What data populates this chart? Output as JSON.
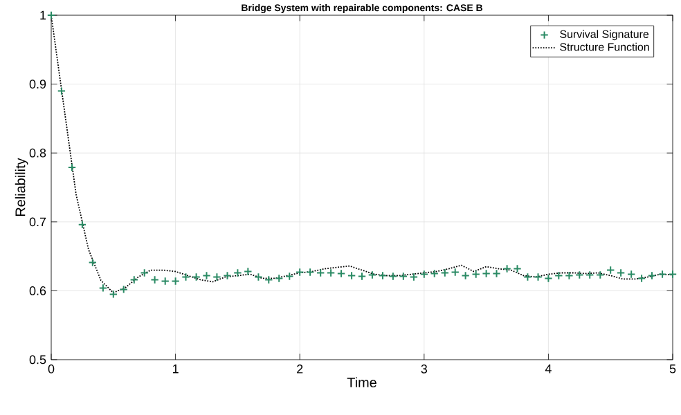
{
  "chart_data": {
    "type": "line",
    "title": "Bridge System with repairable components: CASE B",
    "xlabel": "Time",
    "ylabel": "Reliability",
    "xlim": [
      0,
      5
    ],
    "ylim": [
      0.5,
      1
    ],
    "xticks": [
      0,
      1,
      2,
      3,
      4,
      5
    ],
    "yticks": [
      0.5,
      0.6,
      0.7,
      0.8,
      0.9,
      1
    ],
    "grid": true,
    "legend": "top right",
    "series": [
      {
        "name": "Survival Signature",
        "type": "scatter",
        "marker": "cross",
        "color": "#2a8a64",
        "x": [
          0,
          0.083,
          0.167,
          0.25,
          0.333,
          0.417,
          0.5,
          0.583,
          0.667,
          0.75,
          0.833,
          0.917,
          1.0,
          1.083,
          1.167,
          1.25,
          1.333,
          1.417,
          1.5,
          1.583,
          1.667,
          1.75,
          1.833,
          1.917,
          2.0,
          2.083,
          2.167,
          2.25,
          2.333,
          2.417,
          2.5,
          2.583,
          2.667,
          2.75,
          2.833,
          2.917,
          3.0,
          3.083,
          3.167,
          3.25,
          3.333,
          3.417,
          3.5,
          3.583,
          3.667,
          3.75,
          3.833,
          3.917,
          4.0,
          4.083,
          4.167,
          4.25,
          4.333,
          4.417,
          4.5,
          4.583,
          4.667,
          4.75,
          4.833,
          4.917,
          5.0
        ],
        "values": [
          1.0,
          0.89,
          0.779,
          0.696,
          0.641,
          0.604,
          0.595,
          0.602,
          0.616,
          0.626,
          0.616,
          0.614,
          0.614,
          0.62,
          0.62,
          0.622,
          0.62,
          0.622,
          0.626,
          0.628,
          0.62,
          0.616,
          0.618,
          0.621,
          0.627,
          0.627,
          0.626,
          0.626,
          0.625,
          0.622,
          0.621,
          0.623,
          0.622,
          0.621,
          0.621,
          0.62,
          0.624,
          0.625,
          0.626,
          0.627,
          0.622,
          0.624,
          0.625,
          0.625,
          0.632,
          0.632,
          0.62,
          0.62,
          0.618,
          0.622,
          0.622,
          0.623,
          0.623,
          0.623,
          0.63,
          0.626,
          0.624,
          0.618,
          0.622,
          0.624,
          0.624
        ]
      },
      {
        "name": "Structure Function",
        "marker": "none",
        "line_style": "dotted",
        "color": "#000000",
        "x": [
          0,
          0.1,
          0.2,
          0.3,
          0.4,
          0.5,
          0.6,
          0.7,
          0.8,
          0.9,
          1.0,
          1.1,
          1.2,
          1.3,
          1.4,
          1.5,
          1.6,
          1.7,
          1.8,
          1.9,
          2.0,
          2.1,
          2.2,
          2.3,
          2.4,
          2.5,
          2.6,
          2.7,
          2.8,
          2.9,
          3.0,
          3.1,
          3.2,
          3.3,
          3.4,
          3.5,
          3.6,
          3.7,
          3.8,
          3.9,
          4.0,
          4.1,
          4.2,
          4.3,
          4.4,
          4.5,
          4.6,
          4.7,
          4.8,
          4.9,
          5.0
        ],
        "values": [
          1.0,
          0.87,
          0.74,
          0.66,
          0.615,
          0.597,
          0.605,
          0.62,
          0.63,
          0.63,
          0.628,
          0.622,
          0.616,
          0.613,
          0.62,
          0.622,
          0.624,
          0.618,
          0.618,
          0.622,
          0.626,
          0.628,
          0.632,
          0.634,
          0.636,
          0.63,
          0.624,
          0.622,
          0.622,
          0.624,
          0.626,
          0.628,
          0.632,
          0.637,
          0.628,
          0.635,
          0.632,
          0.63,
          0.622,
          0.62,
          0.624,
          0.626,
          0.626,
          0.625,
          0.626,
          0.622,
          0.617,
          0.617,
          0.62,
          0.624,
          0.623
        ]
      }
    ]
  }
}
